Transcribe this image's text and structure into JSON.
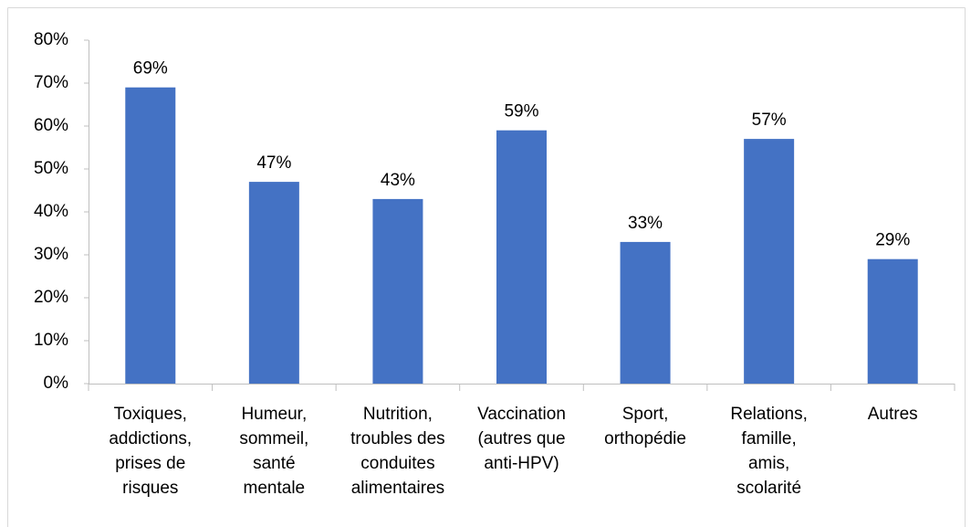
{
  "chart_data": {
    "type": "bar",
    "categories": [
      "Toxiques,\naddictions,\nprises de\nrisques",
      "Humeur,\nsommeil,\nsanté\nmentale",
      "Nutrition,\ntroubles des\nconduites\nalimentaires",
      "Vaccination\n(autres que\nanti-HPV)",
      "Sport,\northopédie",
      "Relations,\nfamille,\namis,\nscolarité",
      "Autres"
    ],
    "values": [
      69,
      47,
      43,
      59,
      33,
      57,
      29
    ],
    "value_labels": [
      "69%",
      "47%",
      "43%",
      "59%",
      "33%",
      "57%",
      "29%"
    ],
    "color": "#4472c4",
    "ylim": [
      0,
      80
    ],
    "yticks": [
      {
        "value": 0,
        "label": "0%"
      },
      {
        "value": 10,
        "label": "10%"
      },
      {
        "value": 20,
        "label": "20%"
      },
      {
        "value": 30,
        "label": "30%"
      },
      {
        "value": 40,
        "label": "40%"
      },
      {
        "value": 50,
        "label": "50%"
      },
      {
        "value": 60,
        "label": "60%"
      },
      {
        "value": 70,
        "label": "70%"
      },
      {
        "value": 80,
        "label": "80%"
      }
    ],
    "grid": false
  }
}
